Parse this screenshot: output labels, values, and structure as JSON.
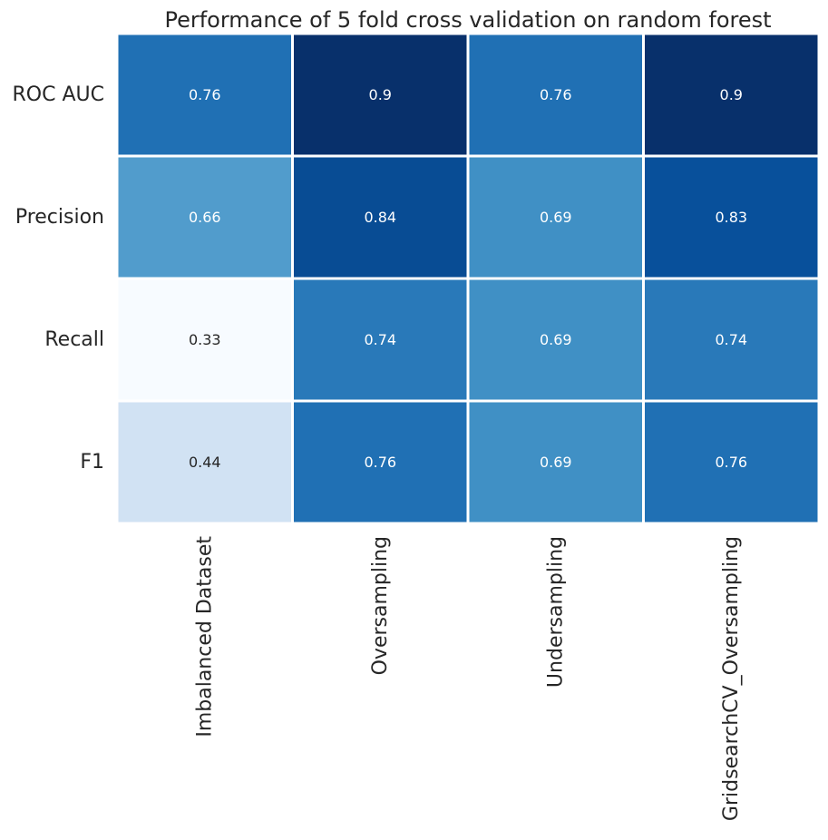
{
  "chart_data": {
    "type": "heatmap",
    "title": "Performance of 5 fold cross validation on random forest",
    "xlabel": "",
    "ylabel": "",
    "columns": [
      "Imbalanced Dataset",
      "Oversampling",
      "Undersampling",
      "GridsearchCV_Oversampling"
    ],
    "rows": [
      "ROC AUC",
      "Precision",
      "Recall",
      "F1"
    ],
    "values": [
      [
        0.76,
        0.9,
        0.76,
        0.9
      ],
      [
        0.66,
        0.84,
        0.69,
        0.83
      ],
      [
        0.33,
        0.74,
        0.69,
        0.74
      ],
      [
        0.44,
        0.76,
        0.69,
        0.76
      ]
    ],
    "colormap": "Blues",
    "vmin": 0.33,
    "vmax": 0.9,
    "colorbar": false,
    "cell_border_color": "#ffffff",
    "annot_dark_text_color": "#262626",
    "annot_light_text_color": "#ffffff"
  }
}
